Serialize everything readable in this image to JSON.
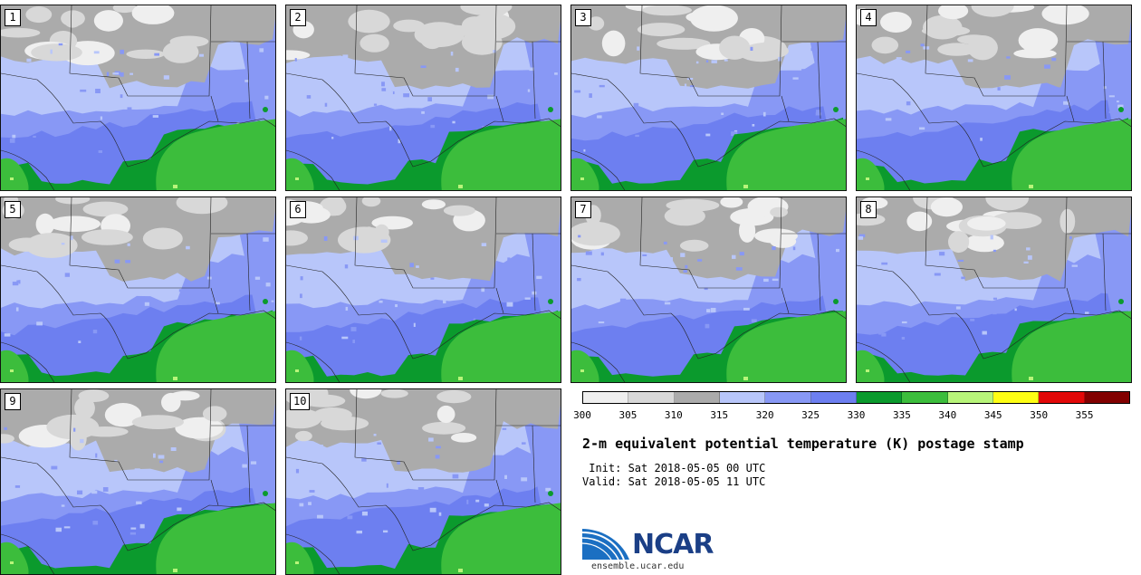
{
  "panels": [
    {
      "label": "1"
    },
    {
      "label": "2"
    },
    {
      "label": "3"
    },
    {
      "label": "4"
    },
    {
      "label": "5"
    },
    {
      "label": "6"
    },
    {
      "label": "7"
    },
    {
      "label": "8"
    },
    {
      "label": "9"
    },
    {
      "label": "10"
    }
  ],
  "legend": {
    "colors": [
      "#efefef",
      "#d8d8d8",
      "#ababab",
      "#b8c6fa",
      "#8898f5",
      "#6d7ff0",
      "#0b9a2d",
      "#3cbd3c",
      "#b8f57a",
      "#fefe14",
      "#e20808",
      "#820000"
    ],
    "ticks": [
      "300",
      "305",
      "310",
      "315",
      "320",
      "325",
      "330",
      "335",
      "340",
      "345",
      "350",
      "355"
    ]
  },
  "title": "2-m equivalent potential temperature (K) postage stamp",
  "init": " Init: Sat 2018-05-05 00 UTC",
  "valid": "Valid: Sat 2018-05-05 11 UTC",
  "logo": {
    "text": "NCAR",
    "site": "ensemble.ucar.edu"
  }
}
